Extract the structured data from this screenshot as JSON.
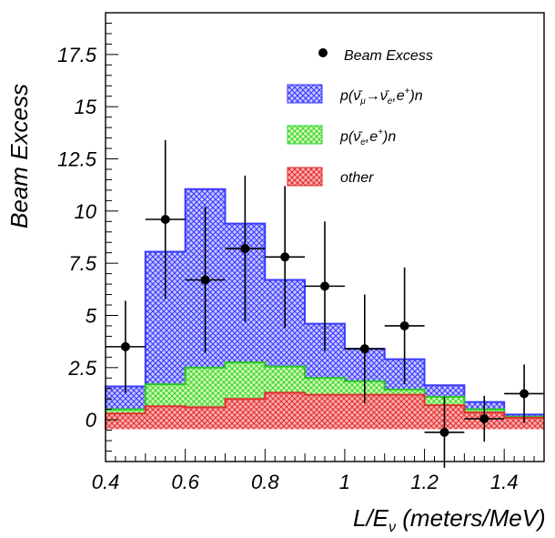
{
  "chart_data": {
    "type": "bar",
    "x_bin_edges": [
      0.4,
      0.5,
      0.6,
      0.7,
      0.8,
      0.9,
      1.0,
      1.1,
      1.2,
      1.3,
      1.4,
      1.5
    ],
    "xlim": [
      0.4,
      1.5
    ],
    "ylim": [
      -2.0,
      19.5
    ],
    "x_ticks": [
      "0.4",
      "0.6",
      "0.8",
      "1",
      "1.2",
      "1.4"
    ],
    "x_tick_values": [
      0.4,
      0.6,
      0.8,
      1.0,
      1.2,
      1.4
    ],
    "y_ticks": [
      "0",
      "2.5",
      "5",
      "7.5",
      "10",
      "12.5",
      "15",
      "17.5"
    ],
    "y_tick_values": [
      0,
      2.5,
      5,
      7.5,
      10,
      12.5,
      15,
      17.5
    ],
    "xlabel": "L/E",
    "xlabel_sub": "ν",
    "xlabel_unit": " (meters/MeV)",
    "ylabel": "Beam Excess",
    "stacked_series": [
      {
        "name": "p(ν̄μ→ν̄e,e+)n",
        "color": "#3a3aff",
        "fill": "#c8c8ff",
        "top_values": [
          1.6,
          8.05,
          11.05,
          9.4,
          6.7,
          4.6,
          3.4,
          2.9,
          1.65,
          0.85,
          0.25
        ]
      },
      {
        "name": "p(ν̄e,e+)n",
        "color": "#28c828",
        "fill": "#c8f8a0",
        "top_values": [
          0.5,
          1.7,
          2.5,
          2.75,
          2.55,
          2.0,
          1.85,
          1.45,
          1.1,
          0.5,
          0.15
        ]
      },
      {
        "name": "other",
        "color": "#e03030",
        "fill": "#f8a0a0",
        "top_values": [
          0.3,
          0.65,
          0.6,
          1.0,
          1.3,
          1.2,
          1.2,
          1.2,
          0.7,
          0.35,
          0.1
        ]
      }
    ],
    "points": {
      "name": "Beam Excess",
      "x": [
        0.45,
        0.55,
        0.65,
        0.75,
        0.85,
        0.95,
        1.05,
        1.15,
        1.25,
        1.35,
        1.45
      ],
      "y": [
        3.5,
        9.6,
        6.7,
        8.2,
        7.8,
        6.4,
        3.4,
        4.5,
        -0.6,
        0.05,
        1.25
      ],
      "y_err": [
        2.2,
        3.8,
        3.5,
        3.5,
        3.4,
        3.1,
        2.6,
        2.8,
        1.7,
        1.1,
        1.4
      ],
      "x_err": 0.05
    },
    "legend": {
      "placement": "top-right",
      "entries": [
        {
          "label": "Beam Excess"
        },
        {
          "label_main": "p(",
          "label_parts": [
            "ν̄",
            "μ",
            "→ν̄",
            "e",
            ",e",
            "+",
            ")n"
          ]
        },
        {
          "label_parts": [
            "p(ν̄",
            "e",
            ",e",
            "+",
            ")n"
          ]
        },
        {
          "label": "other"
        }
      ]
    }
  }
}
